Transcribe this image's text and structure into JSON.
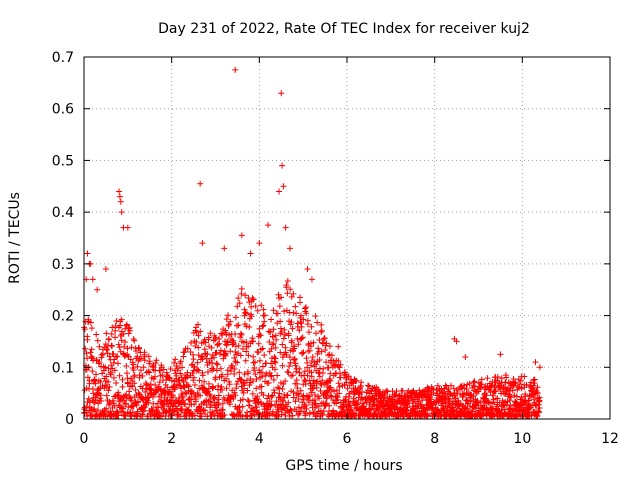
{
  "chart_data": {
    "type": "scatter",
    "title": "Day 231 of 2022, Rate Of TEC Index for receiver kuj2",
    "xlabel": "GPS time / hours",
    "ylabel": "ROTI / TECUs",
    "xlim": [
      0,
      12
    ],
    "ylim": [
      0,
      0.7
    ],
    "grid": true,
    "marker": "+",
    "series_color": "#ff0000",
    "x_ticks": [
      0,
      2,
      4,
      6,
      8,
      10,
      12
    ],
    "x_tick_labels": [
      "0",
      "2",
      "4",
      "6",
      "8",
      "10",
      "12"
    ],
    "y_ticks": [
      0,
      0.1,
      0.2,
      0.3,
      0.4,
      0.5,
      0.6,
      0.7
    ],
    "y_tick_labels": [
      "0",
      "0.1",
      "0.2",
      "0.3",
      "0.4",
      "0.5",
      "0.6",
      "0.7"
    ],
    "envelope": {
      "description": "approximate typical upper extent of the dense ROTI point cloud versus GPS time",
      "x": [
        0.0,
        0.2,
        0.4,
        0.6,
        0.8,
        1.0,
        1.2,
        1.5,
        1.8,
        2.0,
        2.3,
        2.6,
        3.0,
        3.3,
        3.6,
        4.0,
        4.3,
        4.6,
        5.0,
        5.3,
        5.6,
        6.0,
        6.5,
        7.0,
        7.5,
        8.0,
        8.5,
        9.0,
        9.5,
        10.0,
        10.4
      ],
      "y": [
        0.2,
        0.18,
        0.15,
        0.17,
        0.2,
        0.18,
        0.14,
        0.12,
        0.1,
        0.1,
        0.14,
        0.18,
        0.16,
        0.2,
        0.25,
        0.22,
        0.2,
        0.28,
        0.22,
        0.2,
        0.14,
        0.08,
        0.06,
        0.05,
        0.05,
        0.06,
        0.06,
        0.07,
        0.08,
        0.08,
        0.07
      ]
    },
    "notable_points": {
      "x": [
        0.05,
        0.08,
        0.12,
        0.15,
        0.2,
        0.3,
        0.5,
        0.8,
        0.82,
        0.84,
        0.86,
        0.9,
        1.0,
        2.65,
        2.7,
        3.2,
        3.45,
        3.6,
        3.8,
        4.0,
        4.2,
        4.45,
        4.5,
        4.52,
        4.55,
        4.6,
        4.7,
        5.1,
        5.2,
        5.8,
        8.45,
        8.5,
        8.7,
        9.5,
        10.3,
        10.4
      ],
      "y": [
        0.27,
        0.32,
        0.3,
        0.3,
        0.27,
        0.25,
        0.29,
        0.44,
        0.43,
        0.42,
        0.4,
        0.37,
        0.37,
        0.455,
        0.34,
        0.33,
        0.675,
        0.355,
        0.32,
        0.34,
        0.375,
        0.44,
        0.63,
        0.49,
        0.45,
        0.37,
        0.33,
        0.29,
        0.27,
        0.14,
        0.155,
        0.15,
        0.12,
        0.125,
        0.11,
        0.1
      ]
    }
  }
}
